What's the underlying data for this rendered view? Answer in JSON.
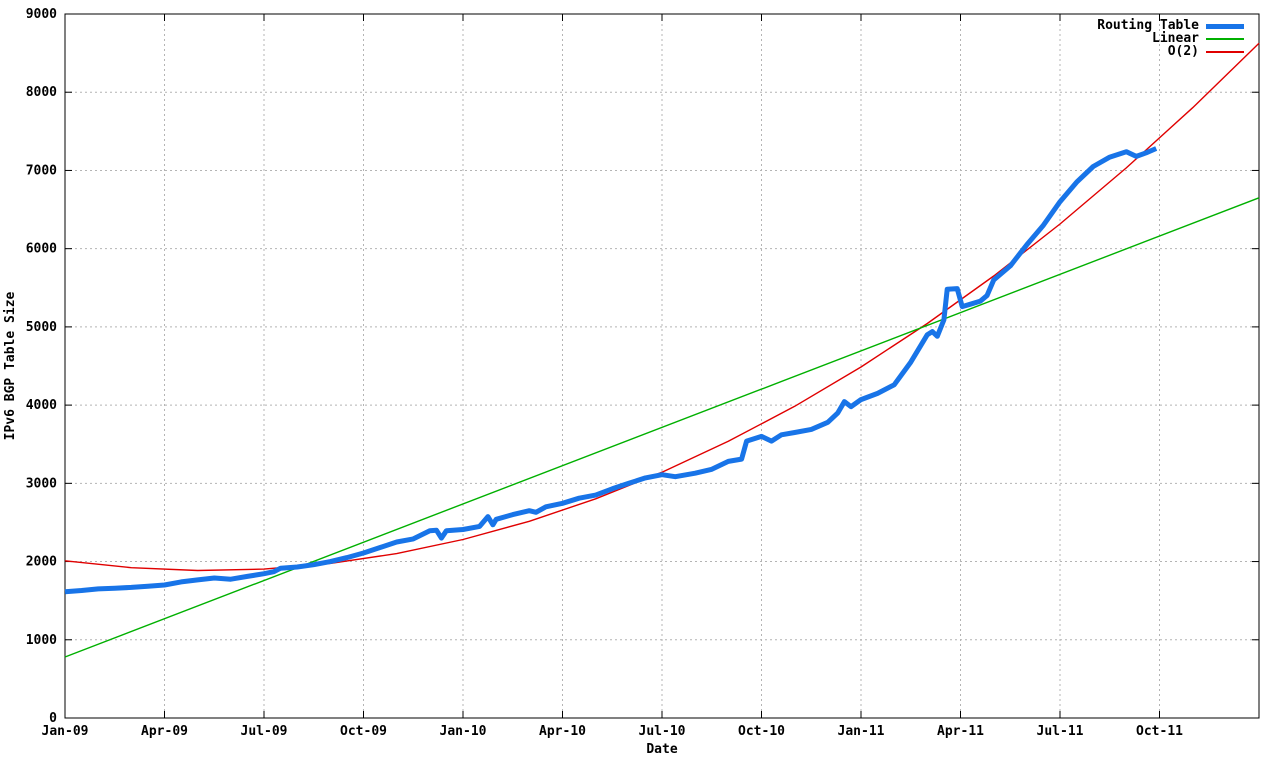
{
  "chart_data": {
    "type": "line",
    "title": "",
    "xlabel": "Date",
    "ylabel": "IPv6 BGP Table Size",
    "x_tick_labels": [
      "Jan-09",
      "Apr-09",
      "Jul-09",
      "Oct-09",
      "Jan-10",
      "Apr-10",
      "Jul-10",
      "Oct-10",
      "Jan-11",
      "Apr-11",
      "Jul-11",
      "Oct-11"
    ],
    "x_tick_positions_months": [
      0,
      3,
      6,
      9,
      12,
      15,
      18,
      21,
      24,
      27,
      30,
      33
    ],
    "x_range_months": [
      0,
      36
    ],
    "y_tick_labels": [
      "0",
      "1000",
      "2000",
      "3000",
      "4000",
      "5000",
      "6000",
      "7000",
      "8000",
      "9000"
    ],
    "y_tick_values": [
      0,
      1000,
      2000,
      3000,
      4000,
      5000,
      6000,
      7000,
      8000,
      9000
    ],
    "ylim": [
      0,
      9000
    ],
    "grid": true,
    "legend_position": "top-right-inside",
    "colors": {
      "axis": "#000000",
      "grid": "#b4b4b4",
      "background": "#ffffff"
    },
    "series": [
      {
        "name": "Routing Table",
        "color": "#1874e8",
        "line_width": 5,
        "points": [
          [
            0,
            1615
          ],
          [
            0.5,
            1630
          ],
          [
            1,
            1650
          ],
          [
            1.5,
            1660
          ],
          [
            2,
            1670
          ],
          [
            2.5,
            1685
          ],
          [
            3,
            1700
          ],
          [
            3.5,
            1740
          ],
          [
            4,
            1765
          ],
          [
            4.5,
            1790
          ],
          [
            5,
            1775
          ],
          [
            5.5,
            1810
          ],
          [
            6,
            1845
          ],
          [
            6.3,
            1870
          ],
          [
            6.5,
            1915
          ],
          [
            7,
            1930
          ],
          [
            7.5,
            1960
          ],
          [
            8,
            2000
          ],
          [
            8.5,
            2050
          ],
          [
            9,
            2110
          ],
          [
            9.5,
            2180
          ],
          [
            10,
            2250
          ],
          [
            10.5,
            2290
          ],
          [
            11,
            2395
          ],
          [
            11.2,
            2400
          ],
          [
            11.35,
            2300
          ],
          [
            11.5,
            2395
          ],
          [
            12,
            2410
          ],
          [
            12.5,
            2450
          ],
          [
            12.75,
            2575
          ],
          [
            12.9,
            2470
          ],
          [
            13,
            2540
          ],
          [
            13.5,
            2600
          ],
          [
            14,
            2650
          ],
          [
            14.2,
            2630
          ],
          [
            14.5,
            2700
          ],
          [
            15,
            2745
          ],
          [
            15.5,
            2810
          ],
          [
            16,
            2850
          ],
          [
            16.5,
            2930
          ],
          [
            17,
            3000
          ],
          [
            17.5,
            3070
          ],
          [
            18,
            3110
          ],
          [
            18.4,
            3085
          ],
          [
            19,
            3130
          ],
          [
            19.5,
            3180
          ],
          [
            20,
            3280
          ],
          [
            20.4,
            3310
          ],
          [
            20.55,
            3540
          ],
          [
            21,
            3600
          ],
          [
            21.3,
            3540
          ],
          [
            21.6,
            3620
          ],
          [
            22,
            3650
          ],
          [
            22.5,
            3690
          ],
          [
            23,
            3780
          ],
          [
            23.3,
            3900
          ],
          [
            23.5,
            4045
          ],
          [
            23.7,
            3980
          ],
          [
            24,
            4070
          ],
          [
            24.5,
            4150
          ],
          [
            25,
            4260
          ],
          [
            25.5,
            4550
          ],
          [
            26,
            4900
          ],
          [
            26.15,
            4940
          ],
          [
            26.3,
            4880
          ],
          [
            26.5,
            5090
          ],
          [
            26.6,
            5480
          ],
          [
            26.9,
            5490
          ],
          [
            27.05,
            5260
          ],
          [
            27.3,
            5290
          ],
          [
            27.6,
            5330
          ],
          [
            27.8,
            5400
          ],
          [
            28,
            5600
          ],
          [
            28.5,
            5780
          ],
          [
            29,
            6050
          ],
          [
            29.5,
            6300
          ],
          [
            30,
            6600
          ],
          [
            30.5,
            6850
          ],
          [
            31,
            7050
          ],
          [
            31.5,
            7170
          ],
          [
            32,
            7240
          ],
          [
            32.3,
            7180
          ],
          [
            32.6,
            7225
          ],
          [
            32.9,
            7280
          ]
        ]
      },
      {
        "name": "Linear",
        "color": "#00b000",
        "line_width": 1.4,
        "points": [
          [
            0,
            780
          ],
          [
            36,
            6650
          ]
        ]
      },
      {
        "name": "O(2)",
        "color": "#e00000",
        "line_width": 1.4,
        "points": [
          [
            0,
            2010
          ],
          [
            2,
            1921
          ],
          [
            4,
            1886
          ],
          [
            6,
            1904
          ],
          [
            8,
            1976
          ],
          [
            10,
            2102
          ],
          [
            12,
            2282
          ],
          [
            14,
            2515
          ],
          [
            16,
            2802
          ],
          [
            18,
            3142
          ],
          [
            20,
            3537
          ],
          [
            22,
            3985
          ],
          [
            24,
            4487
          ],
          [
            26,
            5043
          ],
          [
            28,
            5651
          ],
          [
            30,
            6315
          ],
          [
            32,
            7032
          ],
          [
            34,
            7802
          ],
          [
            36,
            8627
          ]
        ]
      }
    ]
  }
}
